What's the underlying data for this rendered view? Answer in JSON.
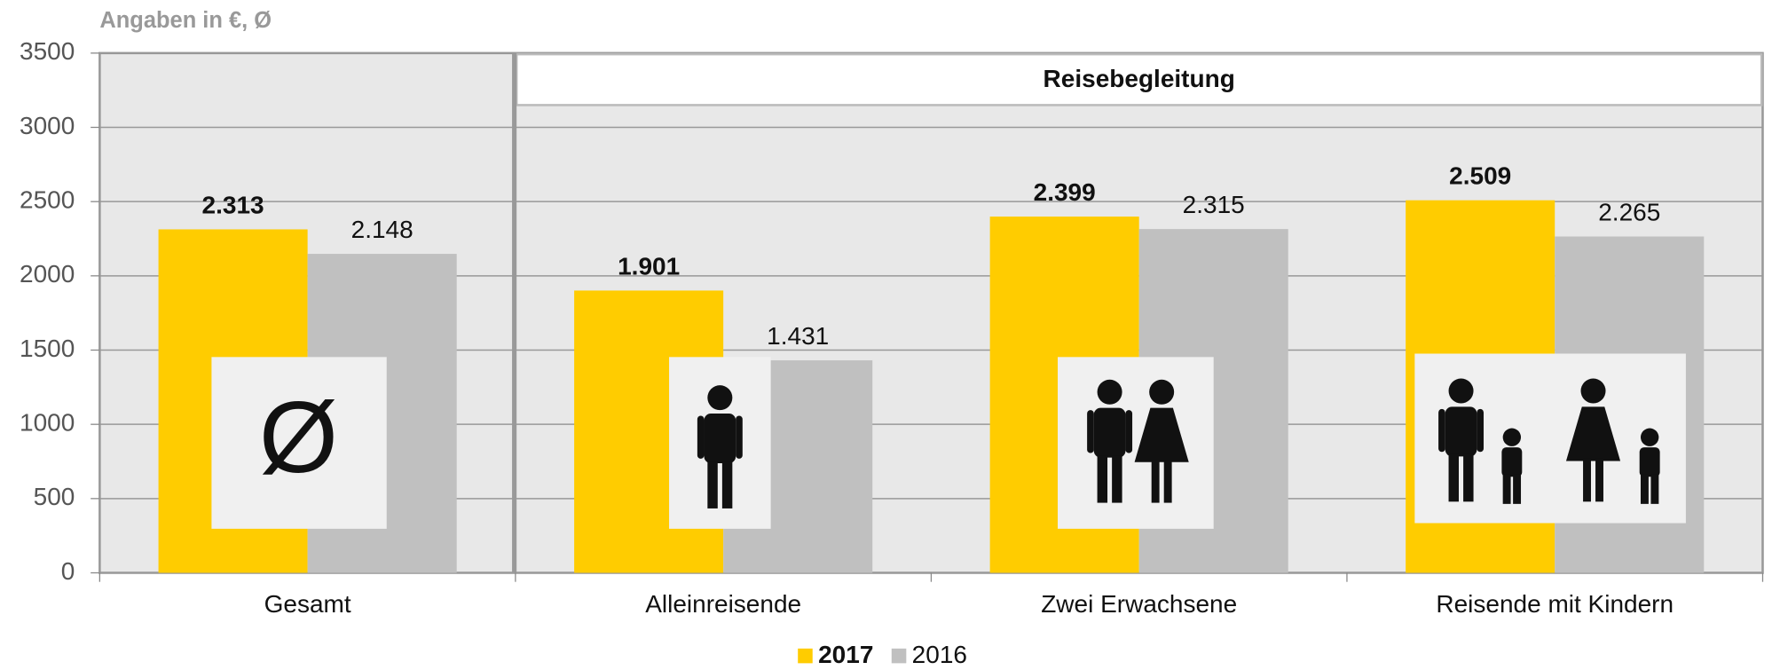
{
  "chart_data": {
    "type": "bar",
    "subtitle": "Angaben in €, Ø",
    "group_label": "Reisebegleitung",
    "icon_symbol": "Ø",
    "categories": [
      "Gesamt",
      "Alleinreisende",
      "Zwei Erwachsene",
      "Reisende mit Kindern"
    ],
    "series": [
      {
        "name": "2017",
        "color": "#ffcc00",
        "values": [
          2313,
          1901,
          2399,
          2509
        ],
        "value_labels": [
          "2.313",
          "1.901",
          "2.399",
          "2.509"
        ]
      },
      {
        "name": "2016",
        "color": "#c0c0c0",
        "values": [
          2148,
          1431,
          2315,
          2265
        ],
        "value_labels": [
          "2.148",
          "1.431",
          "2.315",
          "2.265"
        ]
      }
    ],
    "ylim": [
      0,
      3500
    ],
    "yticks": [
      0,
      500,
      1000,
      1500,
      2000,
      2500,
      3000,
      3500
    ],
    "grid": true
  }
}
